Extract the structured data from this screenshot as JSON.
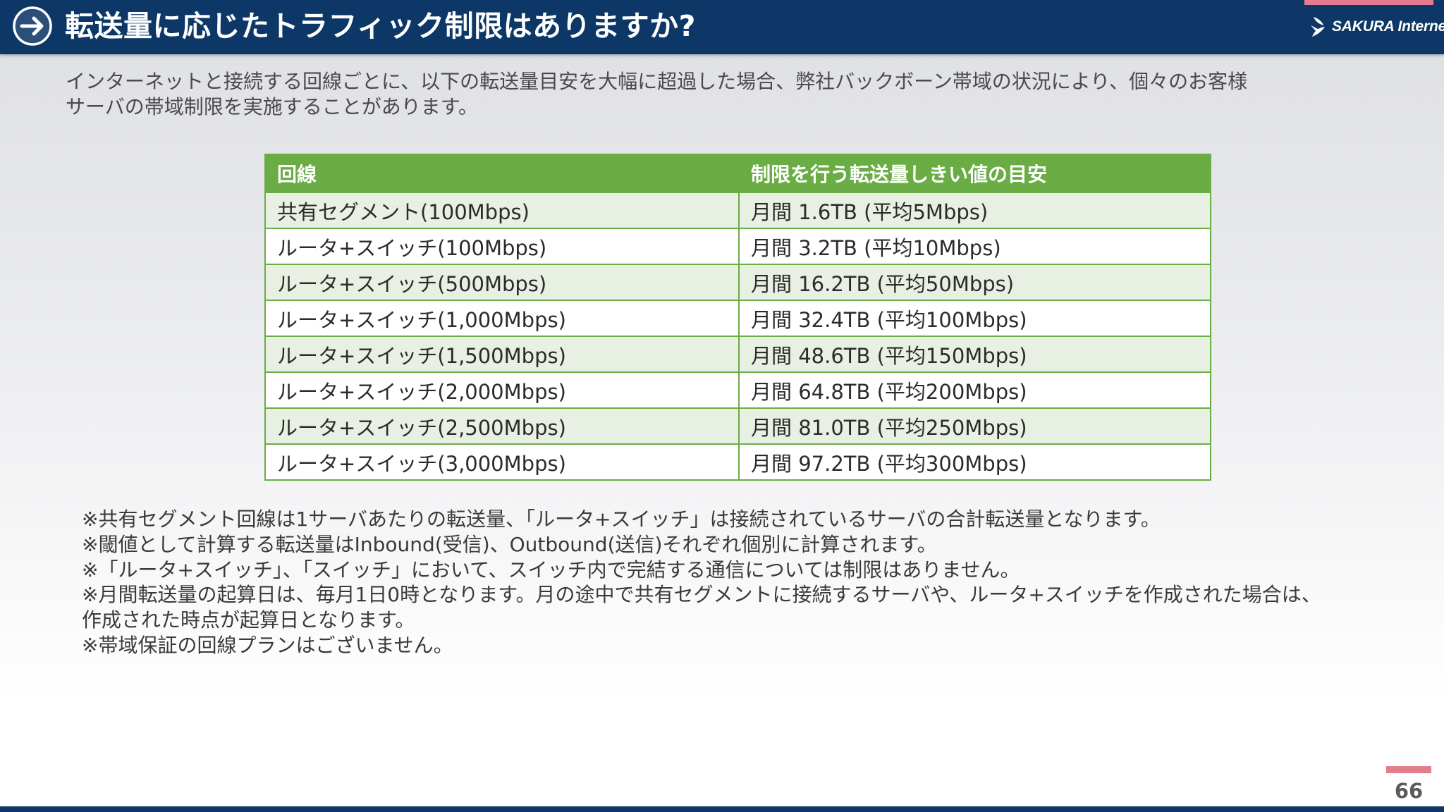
{
  "header": {
    "title": "転送量に応じたトラフィック制限はありますか?",
    "icon": "arrow-right-circle-icon",
    "logo_text": "SAKURA Internet",
    "colors": {
      "bar": "#0c3766",
      "accent": "#e37c8c"
    }
  },
  "intro": {
    "lines": [
      "インターネットと接続する回線ごとに、以下の転送量目安を大幅に超過した場合、弊社バックボーン帯域の状況により、個々のお客様",
      "サーバの帯域制限を実施することがあります。"
    ]
  },
  "table": {
    "headers": [
      "回線",
      "制限を行う転送量しきい値の目安"
    ],
    "rows": [
      [
        "共有セグメント(100Mbps)",
        "月間 1.6TB (平均5Mbps)"
      ],
      [
        "ルータ+スイッチ(100Mbps)",
        "月間 3.2TB (平均10Mbps)"
      ],
      [
        "ルータ+スイッチ(500Mbps)",
        "月間 16.2TB (平均50Mbps)"
      ],
      [
        "ルータ+スイッチ(1,000Mbps)",
        "月間 32.4TB (平均100Mbps)"
      ],
      [
        "ルータ+スイッチ(1,500Mbps)",
        "月間 48.6TB (平均150Mbps)"
      ],
      [
        "ルータ+スイッチ(2,000Mbps)",
        "月間 64.8TB (平均200Mbps)"
      ],
      [
        "ルータ+スイッチ(2,500Mbps)",
        "月間 81.0TB (平均250Mbps)"
      ],
      [
        "ルータ+スイッチ(3,000Mbps)",
        "月間 97.2TB (平均300Mbps)"
      ]
    ],
    "colors": {
      "header": "#6aad45",
      "stripe": "#e8efe3"
    }
  },
  "notes": {
    "lines": [
      "※共有セグメント回線は1サーバあたりの転送量、「ルータ+スイッチ」は接続されているサーバの合計転送量となります。",
      "※閾値として計算する転送量はInbound(受信)、Outbound(送信)それぞれ個別に計算されます。",
      "※「ルータ+スイッチ」、「スイッチ」において、スイッチ内で完結する通信については制限はありません。",
      "※月間転送量の起算日は、毎月1日0時となります。月の途中で共有セグメントに接続するサーバや、ルータ+スイッチを作成された場合は、",
      "作成された時点が起算日となります。",
      "※帯域保証の回線プランはございません。"
    ]
  },
  "footer": {
    "page_number": "66"
  }
}
